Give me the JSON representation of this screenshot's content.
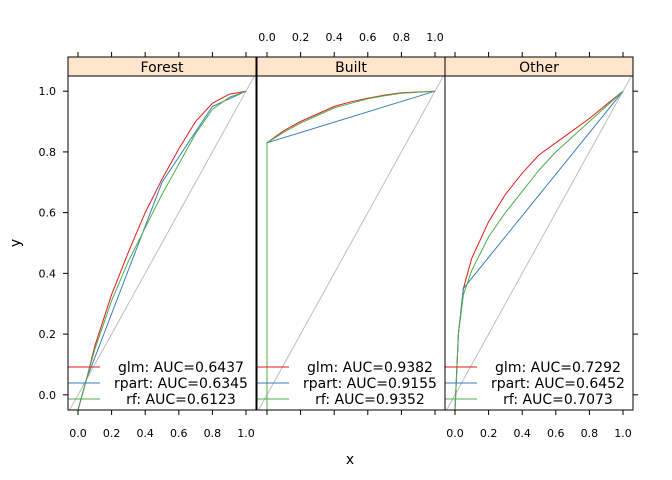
{
  "chart_data": {
    "type": "line",
    "title": "",
    "xlabel": "x",
    "ylabel": "y",
    "xlim": [
      0,
      1
    ],
    "ylim": [
      -0.05,
      1.05
    ],
    "x_ticks": [
      "0.0",
      "0.2",
      "0.4",
      "0.6",
      "0.8",
      "1.0"
    ],
    "y_ticks": [
      "0.0",
      "0.2",
      "0.4",
      "0.6",
      "0.8",
      "1.0"
    ],
    "reference_line": "diagonal",
    "series_colors": {
      "glm": "#e41a1c",
      "rpart": "#377eb8",
      "rf": "#4daf4a"
    },
    "reference_color": "#bebebe",
    "strip_color": "#ffe5cc",
    "panels": [
      {
        "strip": "Forest",
        "series": [
          {
            "name": "glm",
            "legend": "glm: AUC=0.6437",
            "points": [
              [
                0,
                -0.05
              ],
              [
                0.05,
                0.05
              ],
              [
                0.1,
                0.16
              ],
              [
                0.2,
                0.33
              ],
              [
                0.3,
                0.47
              ],
              [
                0.4,
                0.6
              ],
              [
                0.5,
                0.71
              ],
              [
                0.6,
                0.81
              ],
              [
                0.7,
                0.9
              ],
              [
                0.8,
                0.96
              ],
              [
                0.9,
                0.99
              ],
              [
                1.0,
                1.0
              ]
            ]
          },
          {
            "name": "rpart",
            "legend": "rpart: AUC=0.6345",
            "points": [
              [
                0,
                -0.05
              ],
              [
                0.05,
                0.05
              ],
              [
                0.5,
                0.7
              ],
              [
                0.8,
                0.95
              ],
              [
                1.0,
                1.0
              ]
            ]
          },
          {
            "name": "rf",
            "legend": "rf: AUC=0.6123",
            "points": [
              [
                0,
                -0.05
              ],
              [
                0.05,
                0.05
              ],
              [
                0.1,
                0.15
              ],
              [
                0.2,
                0.31
              ],
              [
                0.3,
                0.44
              ],
              [
                0.4,
                0.55
              ],
              [
                0.5,
                0.66
              ],
              [
                0.6,
                0.76
              ],
              [
                0.7,
                0.86
              ],
              [
                0.8,
                0.94
              ],
              [
                0.9,
                0.98
              ],
              [
                1.0,
                1.0
              ]
            ]
          }
        ]
      },
      {
        "strip": "Built",
        "series": [
          {
            "name": "glm",
            "legend": "glm: AUC=0.9382",
            "points": [
              [
                0,
                0.83
              ],
              [
                0.1,
                0.87
              ],
              [
                0.2,
                0.9
              ],
              [
                0.3,
                0.925
              ],
              [
                0.4,
                0.95
              ],
              [
                0.5,
                0.965
              ],
              [
                0.6,
                0.977
              ],
              [
                0.7,
                0.987
              ],
              [
                0.8,
                0.995
              ],
              [
                1.0,
                1.0
              ]
            ]
          },
          {
            "name": "rpart",
            "legend": "rpart: AUC=0.9155",
            "points": [
              [
                0,
                0.83
              ],
              [
                1.0,
                1.0
              ]
            ]
          },
          {
            "name": "rf",
            "legend": "rf: AUC=0.9352",
            "points": [
              [
                0,
                -0.05
              ],
              [
                0,
                0.83
              ],
              [
                0.1,
                0.865
              ],
              [
                0.2,
                0.895
              ],
              [
                0.3,
                0.92
              ],
              [
                0.4,
                0.945
              ],
              [
                0.5,
                0.96
              ],
              [
                0.6,
                0.975
              ],
              [
                0.7,
                0.985
              ],
              [
                0.8,
                0.993
              ],
              [
                1.0,
                1.0
              ]
            ]
          }
        ]
      },
      {
        "strip": "Other",
        "series": [
          {
            "name": "glm",
            "legend": "glm: AUC=0.7292",
            "points": [
              [
                0,
                -0.05
              ],
              [
                0.02,
                0.2
              ],
              [
                0.05,
                0.35
              ],
              [
                0.1,
                0.45
              ],
              [
                0.2,
                0.57
              ],
              [
                0.3,
                0.66
              ],
              [
                0.4,
                0.73
              ],
              [
                0.5,
                0.79
              ],
              [
                0.6,
                0.83
              ],
              [
                0.7,
                0.87
              ],
              [
                0.8,
                0.91
              ],
              [
                0.9,
                0.955
              ],
              [
                1.0,
                1.0
              ]
            ]
          },
          {
            "name": "rpart",
            "legend": "rpart: AUC=0.6452",
            "points": [
              [
                0,
                -0.05
              ],
              [
                0.02,
                0.2
              ],
              [
                0.05,
                0.35
              ],
              [
                1.0,
                1.0
              ]
            ]
          },
          {
            "name": "rf",
            "legend": "rf: AUC=0.7073",
            "points": [
              [
                0,
                -0.05
              ],
              [
                0.02,
                0.2
              ],
              [
                0.05,
                0.33
              ],
              [
                0.1,
                0.41
              ],
              [
                0.2,
                0.52
              ],
              [
                0.3,
                0.6
              ],
              [
                0.4,
                0.67
              ],
              [
                0.5,
                0.74
              ],
              [
                0.6,
                0.8
              ],
              [
                0.7,
                0.85
              ],
              [
                0.8,
                0.9
              ],
              [
                0.9,
                0.95
              ],
              [
                1.0,
                1.0
              ]
            ]
          }
        ]
      }
    ]
  }
}
